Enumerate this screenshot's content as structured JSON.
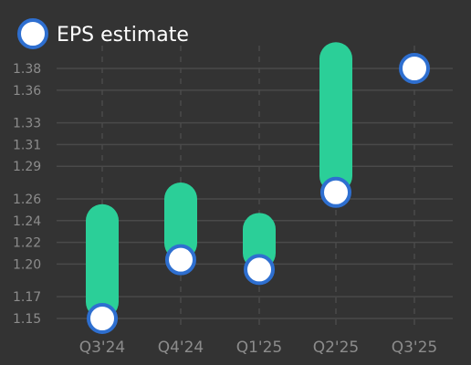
{
  "chart_data": {
    "type": "range-bar",
    "categories": [
      "Q3'24",
      "Q4'24",
      "Q1'25",
      "Q2'25",
      "Q3'25"
    ],
    "series": [
      {
        "name": "EPS estimate",
        "values": [
          1.15,
          1.204,
          1.195,
          1.266,
          1.38
        ]
      }
    ],
    "ranges": [
      [
        1.15,
        1.24
      ],
      [
        1.204,
        1.26
      ],
      [
        1.195,
        1.232
      ],
      [
        1.266,
        1.389
      ],
      null
    ],
    "y_ticks": [
      "1.15",
      "1.17",
      "1.20",
      "1.22",
      "1.24",
      "1.26",
      "1.29",
      "1.31",
      "1.33",
      "1.36",
      "1.38"
    ],
    "ylim": [
      1.15,
      1.38
    ],
    "grid": true,
    "legend_position": "top-left",
    "colors": {
      "background": "#333333",
      "bar": "#2bcf98",
      "marker_fill": "#ffffff",
      "marker_stroke": "#2e6fd0",
      "grid": "#4a4a4a",
      "axis_text": "#8c8c8c",
      "legend_text": "#ffffff"
    }
  }
}
